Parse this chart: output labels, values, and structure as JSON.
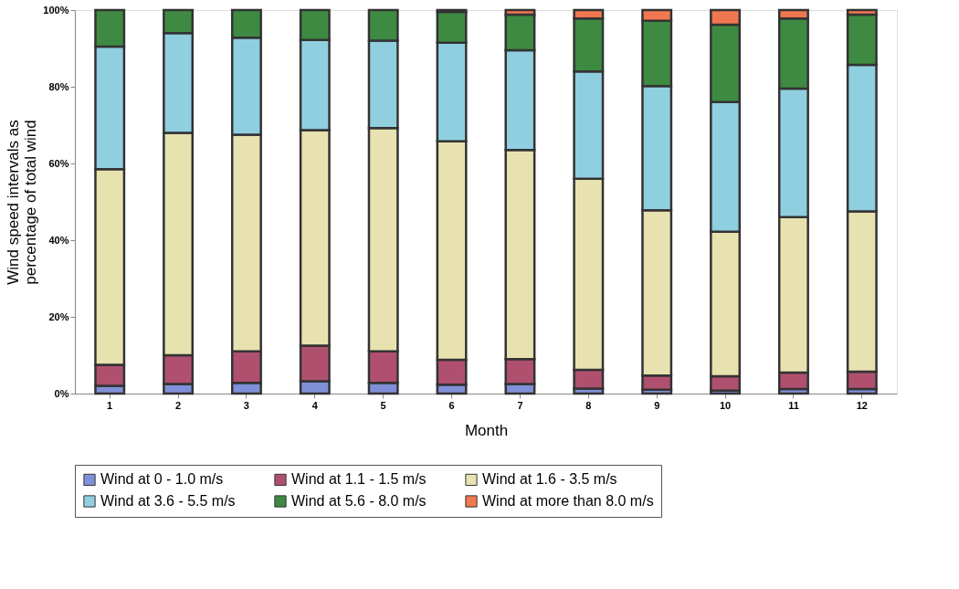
{
  "chart_data": {
    "type": "bar",
    "stacked": true,
    "xlabel": "Month",
    "ylabel": "Wind speed intervals as percentage of total wind",
    "categories": [
      "1",
      "2",
      "3",
      "4",
      "5",
      "6",
      "7",
      "8",
      "9",
      "10",
      "11",
      "12"
    ],
    "series": [
      {
        "name": "Wind at 0 - 1.0 m/s",
        "color": "#8090d8",
        "values": [
          2,
          2.5,
          2.8,
          3.2,
          2.8,
          2.3,
          2.5,
          1.3,
          1,
          0.8,
          1.2,
          1.2
        ]
      },
      {
        "name": "Wind at 1.1 - 1.5 m/s",
        "color": "#b0506f",
        "values": [
          5.5,
          7.5,
          8.2,
          9.3,
          8.2,
          6.5,
          6.5,
          4.9,
          3.7,
          3.7,
          4.3,
          4.5
        ]
      },
      {
        "name": "Wind at 1.6 - 3.5 m/s",
        "color": "#e8e2b0",
        "values": [
          51,
          58,
          56.5,
          56.2,
          58.2,
          57,
          54.5,
          49.8,
          43.1,
          37.7,
          40.5,
          41.8
        ]
      },
      {
        "name": "Wind at 3.6 - 5.5 m/s",
        "color": "#90cfe0",
        "values": [
          32,
          26,
          25.3,
          23.5,
          22.8,
          25.7,
          26,
          28,
          32.4,
          33.8,
          33.5,
          38.2
        ]
      },
      {
        "name": "Wind at 5.6 - 8.0 m/s",
        "color": "#3f8a42",
        "values": [
          9.5,
          6,
          7.2,
          7.8,
          8,
          8,
          9.3,
          13.8,
          17,
          20.2,
          18.3,
          13.1
        ]
      },
      {
        "name": "Wind at more than 8.0 m/s",
        "color": "#f07850",
        "values": [
          null,
          null,
          null,
          null,
          null,
          0.5,
          1.2,
          2.2,
          2.8,
          3.8,
          2.2,
          1.2
        ]
      }
    ],
    "ylim": [
      0,
      100
    ],
    "yticks": [
      {
        "value": 0,
        "label": "0%"
      },
      {
        "value": 20,
        "label": "20%"
      },
      {
        "value": 40,
        "label": "40%"
      },
      {
        "value": 60,
        "label": "60%"
      },
      {
        "value": 80,
        "label": "80%"
      },
      {
        "value": 100,
        "label": "100%"
      }
    ],
    "grid": false,
    "legend": "bottom"
  }
}
